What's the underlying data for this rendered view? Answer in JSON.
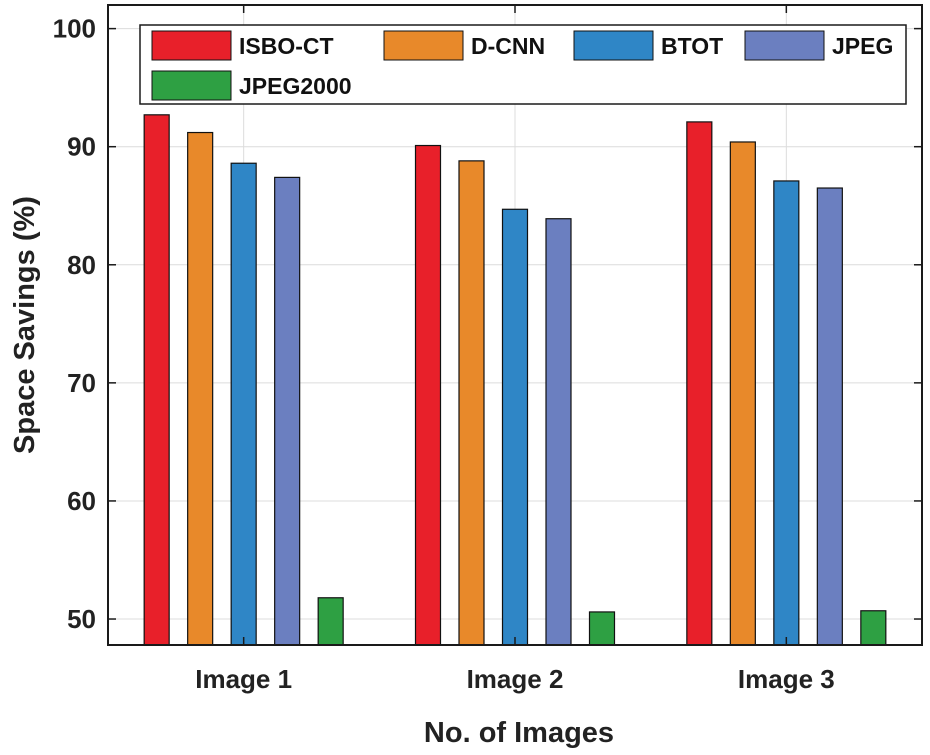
{
  "chart_data": {
    "type": "bar",
    "title": "",
    "xlabel": "No. of Images",
    "ylabel": "Space Savings (%)",
    "categories": [
      "Image 1",
      "Image 2",
      "Image 3"
    ],
    "ylim": [
      47.8,
      102
    ],
    "yticks": [
      50,
      60,
      70,
      80,
      90,
      100
    ],
    "grid": true,
    "legend_position": "top",
    "series": [
      {
        "name": "ISBO-CT",
        "color": "#e8202a",
        "values": [
          92.7,
          90.1,
          92.1
        ]
      },
      {
        "name": "D-CNN",
        "color": "#e8892a",
        "values": [
          91.2,
          88.8,
          90.4
        ]
      },
      {
        "name": "BTOT",
        "color": "#2f86c6",
        "values": [
          88.6,
          84.7,
          87.1
        ]
      },
      {
        "name": "JPEG",
        "color": "#6b7fc0",
        "values": [
          87.4,
          83.9,
          86.5
        ]
      },
      {
        "name": "JPEG2000",
        "color": "#2ea043",
        "values": [
          51.8,
          50.6,
          50.7
        ]
      }
    ]
  }
}
